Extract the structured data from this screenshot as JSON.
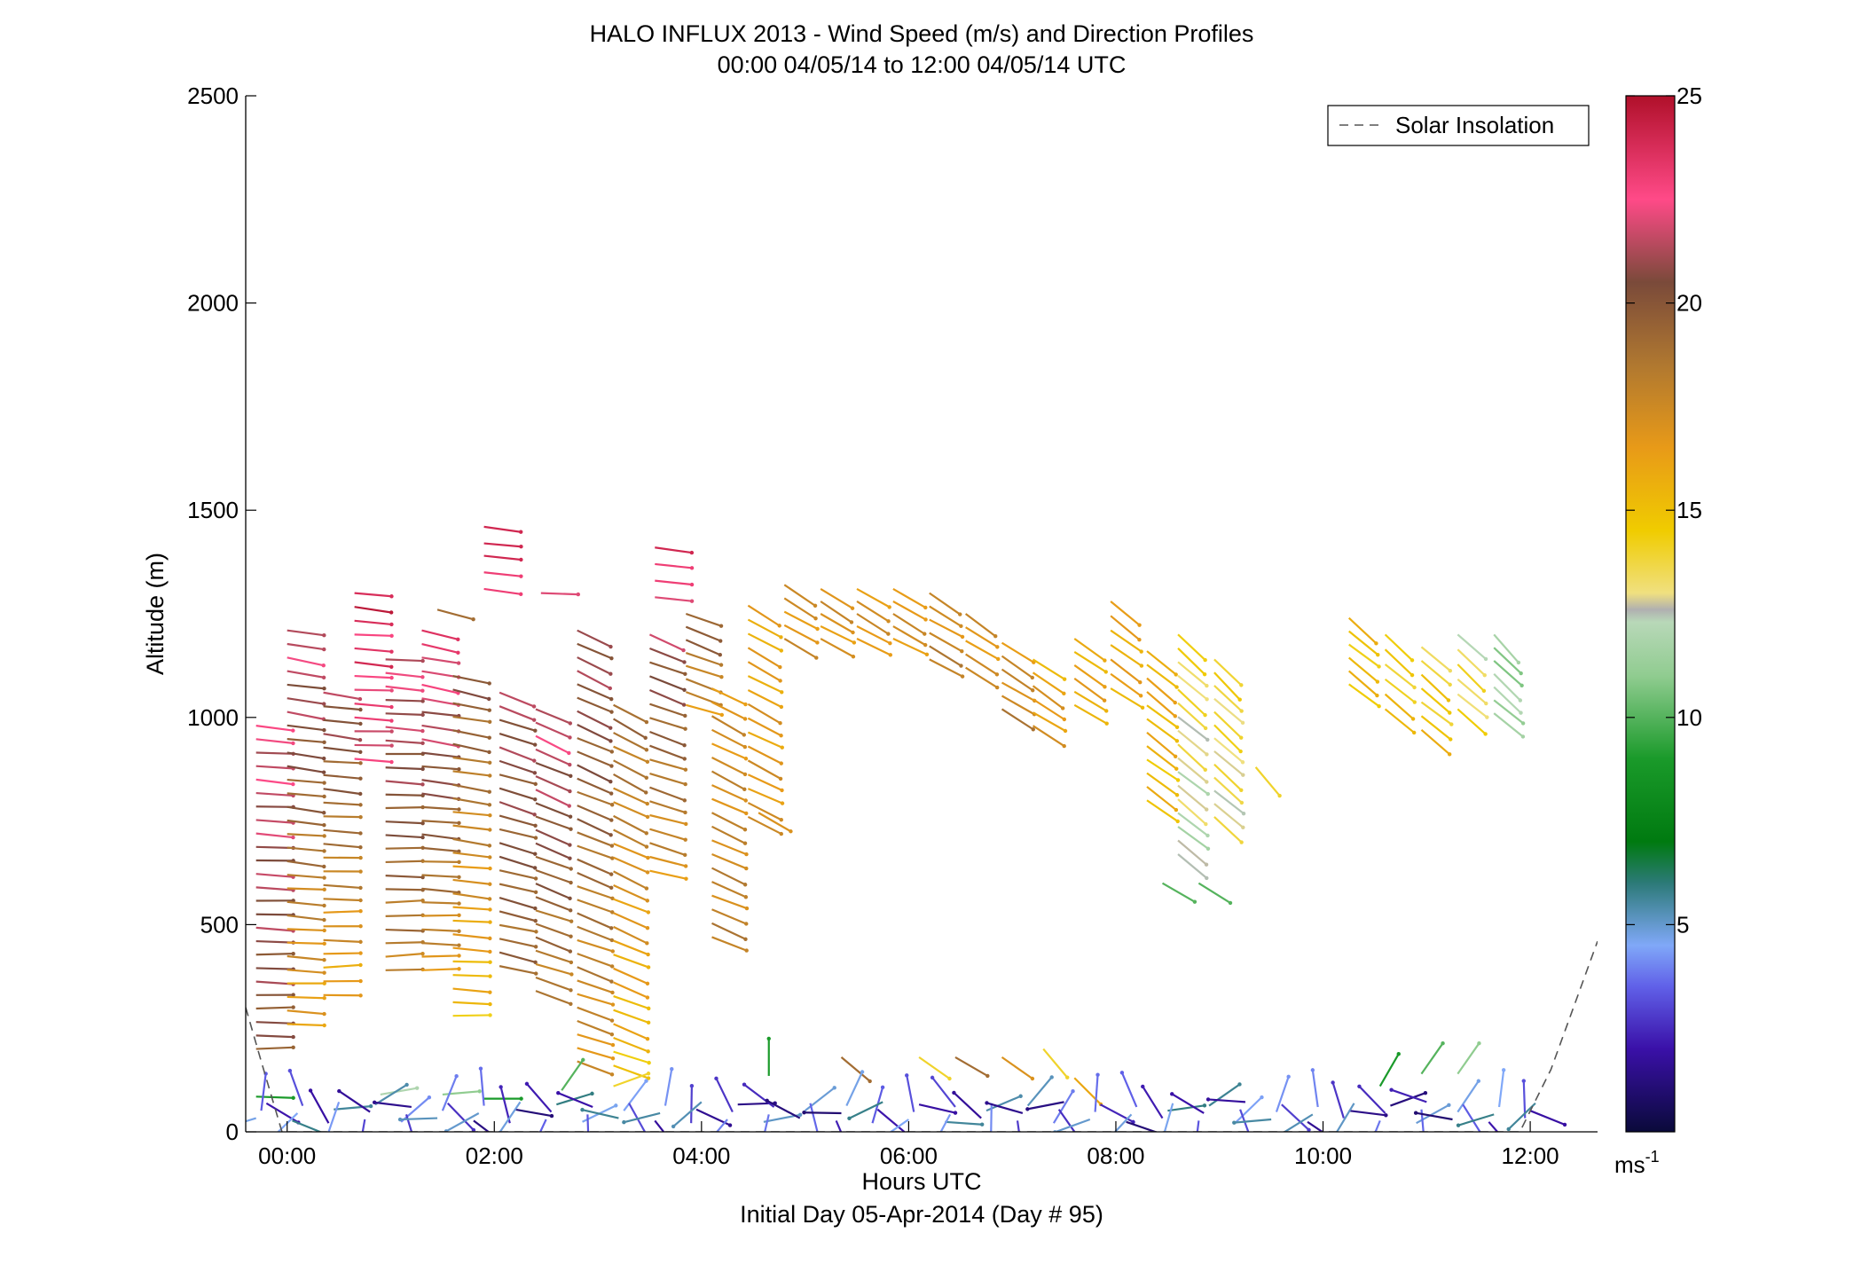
{
  "chart_data": {
    "type": "wind-barb-profile",
    "title": "HALO INFLUX 2013 - Wind Speed (m/s) and Direction Profiles",
    "subtitle": "00:00 04/05/14 to 12:00 04/05/14  UTC",
    "xlabel": "Hours UTC",
    "xlabel2": "Initial Day 05-Apr-2014 (Day # 95)",
    "ylabel": "Altitude (m)",
    "xlim": [
      -0.4,
      12.65
    ],
    "ylim": [
      0,
      2500
    ],
    "x_ticks": [
      0,
      2,
      4,
      6,
      8,
      10,
      12
    ],
    "x_tick_labels": [
      "00:00",
      "02:00",
      "04:00",
      "06:00",
      "08:00",
      "10:00",
      "12:00"
    ],
    "y_ticks": [
      0,
      500,
      1000,
      1500,
      2000,
      2500
    ],
    "y_tick_labels": [
      "0",
      "500",
      "1000",
      "1500",
      "2000",
      "2500"
    ],
    "colorbar": {
      "range": [
        0,
        25
      ],
      "ticks": [
        5,
        10,
        15,
        20,
        25
      ],
      "tick_labels": [
        "5",
        "10",
        "15",
        "20",
        "25"
      ],
      "unit_label": "ms",
      "unit_exponent": "-1",
      "stops": [
        {
          "v": 0,
          "c": "#0a0a3a"
        },
        {
          "v": 2,
          "c": "#3a10a8"
        },
        {
          "v": 3.5,
          "c": "#6060e8"
        },
        {
          "v": 4.5,
          "c": "#80a8f8"
        },
        {
          "v": 6,
          "c": "#2c7a78"
        },
        {
          "v": 7,
          "c": "#007a10"
        },
        {
          "v": 9,
          "c": "#1a9a2a"
        },
        {
          "v": 11,
          "c": "#90cc90"
        },
        {
          "v": 12.3,
          "c": "#b8d8b8"
        },
        {
          "v": 12.6,
          "c": "#b0b0b0"
        },
        {
          "v": 13,
          "c": "#f0e080"
        },
        {
          "v": 14.5,
          "c": "#f0cc00"
        },
        {
          "v": 16.5,
          "c": "#e89a18"
        },
        {
          "v": 18.5,
          "c": "#b07830"
        },
        {
          "v": 20.5,
          "c": "#7a4a3a"
        },
        {
          "v": 22.5,
          "c": "#ff4a88"
        },
        {
          "v": 25,
          "c": "#b0102a"
        }
      ]
    },
    "legend": {
      "entry": "Solar Insolation",
      "placement": "top-right",
      "style": "dashed",
      "color": "#555555"
    },
    "solar_insolation": {
      "x": [
        -0.4,
        -0.25,
        -0.05,
        11.9,
        12.2,
        12.65
      ],
      "y": [
        300,
        170,
        0,
        0,
        150,
        460
      ]
    },
    "profiles": [
      {
        "t": -0.3,
        "z0": 200,
        "z1": 980,
        "s0": 20,
        "s1": 22,
        "d0": 270,
        "d1": 275,
        "dz": 33
      },
      {
        "t": 0.0,
        "z0": 260,
        "z1": 1210,
        "s0": 16,
        "s1": 22,
        "d0": 272,
        "d1": 280,
        "dz": 33
      },
      {
        "t": 0.35,
        "z0": 330,
        "z1": 1060,
        "s0": 16,
        "s1": 21,
        "d0": 268,
        "d1": 278,
        "dz": 33
      },
      {
        "t": 0.65,
        "z0": 900,
        "z1": 1300,
        "s0": 22,
        "s1": 24,
        "d0": 272,
        "d1": 276,
        "dz": 33
      },
      {
        "t": 0.95,
        "z0": 390,
        "z1": 1140,
        "s0": 18,
        "s1": 22,
        "d0": 268,
        "d1": 275,
        "dz": 33
      },
      {
        "t": 1.3,
        "z0": 390,
        "z1": 1210,
        "s0": 17,
        "s1": 23,
        "d0": 270,
        "d1": 282,
        "dz": 33
      },
      {
        "t": 1.6,
        "z0": 280,
        "z1": 1100,
        "s0": 15,
        "s1": 20,
        "d0": 272,
        "d1": 282,
        "dz": 33
      },
      {
        "t": 2.05,
        "z0": 400,
        "z1": 1060,
        "s0": 19,
        "s1": 21,
        "d0": 282,
        "d1": 290,
        "dz": 33
      },
      {
        "t": 2.4,
        "z0": 340,
        "z1": 1020,
        "s0": 18,
        "s1": 22,
        "d0": 288,
        "d1": 295,
        "dz": 33
      },
      {
        "t": 2.8,
        "z0": 170,
        "z1": 1210,
        "s0": 17,
        "s1": 21,
        "d0": 288,
        "d1": 296,
        "dz": 33
      },
      {
        "t": 3.15,
        "z0": 160,
        "z1": 1030,
        "s0": 15,
        "s1": 19,
        "d0": 290,
        "d1": 298,
        "dz": 33
      },
      {
        "t": 3.5,
        "z0": 630,
        "z1": 1200,
        "s0": 17,
        "s1": 21,
        "d0": 285,
        "d1": 292,
        "dz": 33
      },
      {
        "t": 3.85,
        "z0": 1030,
        "z1": 1250,
        "s0": 17,
        "s1": 20,
        "d0": 288,
        "d1": 292,
        "dz": 33
      },
      {
        "t": 4.1,
        "z0": 470,
        "z1": 1070,
        "s0": 18,
        "s1": 17,
        "d0": 292,
        "d1": 298,
        "dz": 33
      },
      {
        "t": 4.45,
        "z0": 760,
        "z1": 1270,
        "s0": 17,
        "s1": 16,
        "d0": 295,
        "d1": 300,
        "dz": 33
      },
      {
        "t": 4.8,
        "z0": 1190,
        "z1": 1320,
        "s0": 17,
        "s1": 17,
        "d0": 298,
        "d1": 302,
        "dz": 33
      },
      {
        "t": 5.15,
        "z0": 1190,
        "z1": 1310,
        "s0": 17,
        "s1": 17,
        "d0": 298,
        "d1": 302,
        "dz": 33
      },
      {
        "t": 5.5,
        "z0": 1190,
        "z1": 1310,
        "s0": 17,
        "s1": 17,
        "d0": 298,
        "d1": 302,
        "dz": 33
      },
      {
        "t": 5.85,
        "z0": 1190,
        "z1": 1310,
        "s0": 17,
        "s1": 17,
        "d0": 298,
        "d1": 302,
        "dz": 33
      },
      {
        "t": 6.2,
        "z0": 1140,
        "z1": 1300,
        "s0": 18,
        "s1": 17,
        "d0": 298,
        "d1": 302,
        "dz": 33
      },
      {
        "t": 6.55,
        "z0": 1120,
        "z1": 1250,
        "s0": 17,
        "s1": 17,
        "d0": 300,
        "d1": 304,
        "dz": 33
      },
      {
        "t": 6.9,
        "z0": 1020,
        "z1": 1180,
        "s0": 18,
        "s1": 17,
        "d0": 300,
        "d1": 304,
        "dz": 33
      },
      {
        "t": 7.2,
        "z0": 980,
        "z1": 1140,
        "s0": 17,
        "s1": 16,
        "d0": 302,
        "d1": 305,
        "dz": 33
      },
      {
        "t": 7.6,
        "z0": 1030,
        "z1": 1190,
        "s0": 16,
        "s1": 16,
        "d0": 302,
        "d1": 306,
        "dz": 33
      },
      {
        "t": 7.95,
        "z0": 1070,
        "z1": 1280,
        "s0": 16,
        "s1": 16,
        "d0": 304,
        "d1": 308,
        "dz": 33
      },
      {
        "t": 8.3,
        "z0": 800,
        "z1": 1160,
        "s0": 15,
        "s1": 16,
        "d0": 305,
        "d1": 310,
        "dz": 33
      },
      {
        "t": 8.6,
        "z0": 670,
        "z1": 1200,
        "s0": 12,
        "s1": 14,
        "d0": 308,
        "d1": 312,
        "dz": 33
      },
      {
        "t": 8.95,
        "z0": 760,
        "z1": 1140,
        "s0": 13,
        "s1": 14,
        "d0": 310,
        "d1": 314,
        "dz": 33
      },
      {
        "t": 10.25,
        "z0": 1080,
        "z1": 1240,
        "s0": 15,
        "s1": 15,
        "d0": 308,
        "d1": 310,
        "dz": 33
      },
      {
        "t": 10.6,
        "z0": 1020,
        "z1": 1200,
        "s0": 15,
        "s1": 14,
        "d0": 308,
        "d1": 312,
        "dz": 33
      },
      {
        "t": 10.95,
        "z0": 970,
        "z1": 1170,
        "s0": 15,
        "s1": 14,
        "d0": 308,
        "d1": 312,
        "dz": 33
      },
      {
        "t": 11.3,
        "z0": 1020,
        "z1": 1200,
        "s0": 14,
        "s1": 13,
        "d0": 310,
        "d1": 314,
        "dz": 33
      },
      {
        "t": 11.65,
        "z0": 1010,
        "z1": 1200,
        "s0": 12,
        "s1": 11,
        "d0": 310,
        "d1": 316,
        "dz": 33
      }
    ],
    "extra_barbs": [
      {
        "t": 1.9,
        "z": 1420,
        "s": 24,
        "d": 275
      },
      {
        "t": 1.9,
        "z": 1460,
        "s": 24,
        "d": 278
      },
      {
        "t": 1.9,
        "z": 1390,
        "s": 24,
        "d": 276
      },
      {
        "t": 1.9,
        "z": 1350,
        "s": 23,
        "d": 276
      },
      {
        "t": 1.9,
        "z": 1310,
        "s": 23,
        "d": 278
      },
      {
        "t": 3.55,
        "z": 1410,
        "s": 24,
        "d": 278
      },
      {
        "t": 3.55,
        "z": 1370,
        "s": 23,
        "d": 276
      },
      {
        "t": 3.55,
        "z": 1330,
        "s": 23,
        "d": 276
      },
      {
        "t": 3.55,
        "z": 1290,
        "s": 22,
        "d": 276
      },
      {
        "t": 2.45,
        "z": 1300,
        "s": 22,
        "d": 272
      },
      {
        "t": 1.45,
        "z": 1260,
        "s": 19,
        "d": 285
      },
      {
        "t": 8.45,
        "z": 600,
        "s": 10,
        "d": 300
      },
      {
        "t": 8.8,
        "z": 600,
        "s": 10,
        "d": 302
      },
      {
        "t": 9.35,
        "z": 880,
        "s": 14,
        "d": 320
      },
      {
        "t": 4.55,
        "z": 770,
        "s": 17,
        "d": 300
      },
      {
        "t": 5.35,
        "z": 180,
        "s": 19,
        "d": 310
      },
      {
        "t": 6.1,
        "z": 180,
        "s": 14,
        "d": 305
      },
      {
        "t": 6.45,
        "z": 180,
        "s": 19,
        "d": 300
      },
      {
        "t": 6.9,
        "z": 180,
        "s": 17,
        "d": 305
      },
      {
        "t": 7.3,
        "z": 200,
        "s": 14,
        "d": 320
      },
      {
        "t": 7.6,
        "z": 130,
        "s": 16,
        "d": 315
      },
      {
        "t": -0.3,
        "z": 85,
        "s": 9,
        "d": 272
      },
      {
        "t": 0.9,
        "z": 90,
        "s": 12,
        "d": 260
      },
      {
        "t": 1.5,
        "z": 90,
        "s": 11,
        "d": 265
      },
      {
        "t": 1.9,
        "z": 80,
        "s": 9,
        "d": 270
      },
      {
        "t": 2.65,
        "z": 100,
        "s": 10,
        "d": 215
      },
      {
        "t": 3.15,
        "z": 110,
        "s": 14,
        "d": 250
      },
      {
        "t": 4.65,
        "z": 135,
        "s": 9,
        "d": 180
      },
      {
        "t": 10.55,
        "z": 110,
        "s": 9,
        "d": 210
      },
      {
        "t": 10.95,
        "z": 140,
        "s": 10,
        "d": 215
      },
      {
        "t": 11.3,
        "z": 140,
        "s": 11,
        "d": 215
      }
    ],
    "surface_barbs": {
      "t_start": -0.3,
      "t_end": 12.0,
      "dt": 0.35,
      "z_levels": [
        20,
        40,
        60
      ],
      "speed_range": [
        1,
        6
      ]
    }
  }
}
